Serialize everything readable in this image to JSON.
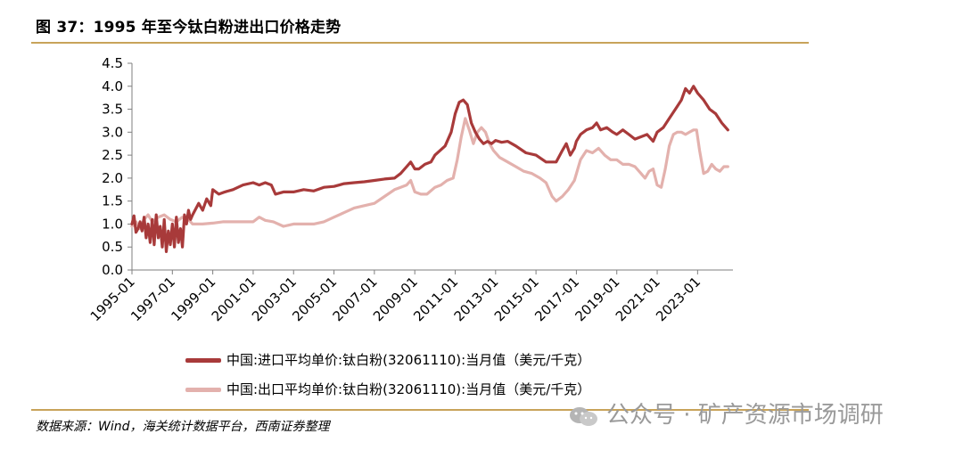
{
  "title": "图 37：1995 年至今钛白粉进出口价格走势",
  "source": "数据来源：Wind，海关统计数据平台，西南证券整理",
  "watermark": "公众号 · 矿产资源市场调研",
  "colors": {
    "import": "#a83a3a",
    "export": "#e3b1ad",
    "axis": "#7f7f7f",
    "accent_rule": "#c8a35a"
  },
  "chart_data": {
    "type": "line",
    "title": "",
    "xlabel": "",
    "ylabel": "",
    "ylim": [
      0,
      4.5
    ],
    "yticks": [
      "0.0",
      "0.5",
      "1.0",
      "1.5",
      "2.0",
      "2.5",
      "3.0",
      "3.5",
      "4.0",
      "4.5"
    ],
    "xlim": [
      1995.0,
      2024.75
    ],
    "xticks": [
      "1995-01",
      "1997-01",
      "1999-01",
      "2001-01",
      "2003-01",
      "2005-01",
      "2007-01",
      "2009-01",
      "2011-01",
      "2013-01",
      "2015-01",
      "2017-01",
      "2019-01",
      "2021-01",
      "2023-01"
    ],
    "series": [
      {
        "name": "中国:进口平均单价:钛白粉(32061110):当月值（美元/千克）",
        "color": "#a83a3a",
        "x": [
          1995.0,
          1995.1,
          1995.2,
          1995.3,
          1995.4,
          1995.5,
          1995.6,
          1995.7,
          1995.8,
          1995.9,
          1996.0,
          1996.1,
          1996.2,
          1996.3,
          1996.4,
          1996.5,
          1996.6,
          1996.7,
          1996.8,
          1996.9,
          1997.0,
          1997.1,
          1997.2,
          1997.3,
          1997.4,
          1997.5,
          1997.6,
          1997.7,
          1997.8,
          1997.9,
          1998.0,
          1998.3,
          1998.5,
          1998.7,
          1998.9,
          1999.0,
          1999.3,
          1999.6,
          2000.0,
          2000.5,
          2001.0,
          2001.3,
          2001.6,
          2001.9,
          2002.1,
          2002.5,
          2003.0,
          2003.5,
          2004.0,
          2004.5,
          2005.0,
          2005.5,
          2006.0,
          2006.5,
          2007.0,
          2007.5,
          2008.0,
          2008.3,
          2008.6,
          2008.8,
          2009.0,
          2009.2,
          2009.5,
          2009.8,
          2010.0,
          2010.5,
          2010.8,
          2011.0,
          2011.2,
          2011.4,
          2011.6,
          2011.8,
          2012.0,
          2012.2,
          2012.4,
          2012.6,
          2012.8,
          2013.0,
          2013.3,
          2013.6,
          2014.0,
          2014.5,
          2015.0,
          2015.5,
          2016.0,
          2016.3,
          2016.5,
          2016.7,
          2016.9,
          2017.0,
          2017.2,
          2017.5,
          2017.8,
          2018.0,
          2018.2,
          2018.5,
          2018.8,
          2019.0,
          2019.3,
          2019.6,
          2019.9,
          2020.2,
          2020.5,
          2020.8,
          2021.0,
          2021.3,
          2021.6,
          2021.9,
          2022.2,
          2022.4,
          2022.6,
          2022.8,
          2023.0,
          2023.3,
          2023.6,
          2023.9,
          2024.2,
          2024.5
        ],
        "values": [
          1.0,
          1.18,
          0.82,
          0.9,
          1.05,
          0.85,
          1.15,
          0.7,
          1.0,
          0.6,
          1.1,
          0.55,
          1.2,
          0.7,
          0.95,
          0.5,
          1.1,
          0.4,
          0.85,
          0.55,
          1.0,
          0.5,
          1.15,
          0.6,
          0.9,
          0.5,
          1.2,
          1.0,
          1.3,
          1.1,
          1.2,
          1.45,
          1.3,
          1.55,
          1.4,
          1.75,
          1.65,
          1.7,
          1.75,
          1.85,
          1.9,
          1.85,
          1.9,
          1.85,
          1.65,
          1.7,
          1.7,
          1.75,
          1.72,
          1.8,
          1.82,
          1.88,
          1.9,
          1.92,
          1.95,
          1.98,
          2.0,
          2.1,
          2.25,
          2.35,
          2.2,
          2.2,
          2.3,
          2.35,
          2.5,
          2.7,
          3.0,
          3.4,
          3.65,
          3.7,
          3.6,
          3.2,
          3.0,
          2.85,
          2.75,
          2.8,
          2.75,
          2.82,
          2.78,
          2.8,
          2.7,
          2.55,
          2.5,
          2.35,
          2.35,
          2.6,
          2.75,
          2.5,
          2.65,
          2.8,
          2.95,
          3.05,
          3.1,
          3.2,
          3.05,
          3.1,
          3.0,
          2.95,
          3.05,
          2.95,
          2.85,
          2.9,
          2.95,
          2.8,
          3.0,
          3.1,
          3.3,
          3.5,
          3.7,
          3.95,
          3.85,
          4.0,
          3.85,
          3.7,
          3.5,
          3.4,
          3.2,
          3.05
        ]
      },
      {
        "name": "中国:出口平均单价:钛白粉(32061110):当月值（美元/千克）",
        "color": "#e3b1ad",
        "x": [
          1995.0,
          1995.2,
          1995.4,
          1995.6,
          1995.8,
          1996.0,
          1996.3,
          1996.6,
          1996.9,
          1997.2,
          1997.5,
          1997.8,
          1998.0,
          1998.5,
          1999.0,
          1999.5,
          2000.0,
          2000.5,
          2001.0,
          2001.3,
          2001.6,
          2002.0,
          2002.5,
          2003.0,
          2003.5,
          2004.0,
          2004.5,
          2005.0,
          2005.5,
          2006.0,
          2006.5,
          2007.0,
          2007.5,
          2008.0,
          2008.3,
          2008.6,
          2008.8,
          2009.0,
          2009.3,
          2009.6,
          2010.0,
          2010.3,
          2010.6,
          2010.9,
          2011.1,
          2011.3,
          2011.5,
          2011.7,
          2011.9,
          2012.1,
          2012.3,
          2012.5,
          2012.7,
          2012.9,
          2013.2,
          2013.6,
          2014.0,
          2014.4,
          2014.8,
          2015.2,
          2015.5,
          2015.8,
          2016.0,
          2016.3,
          2016.6,
          2016.9,
          2017.2,
          2017.5,
          2017.8,
          2018.1,
          2018.4,
          2018.7,
          2019.0,
          2019.3,
          2019.6,
          2019.9,
          2020.2,
          2020.4,
          2020.6,
          2020.8,
          2021.0,
          2021.2,
          2021.4,
          2021.6,
          2021.8,
          2022.0,
          2022.2,
          2022.4,
          2022.6,
          2022.8,
          2022.95,
          2023.1,
          2023.3,
          2023.5,
          2023.7,
          2023.9,
          2024.1,
          2024.3,
          2024.5
        ],
        "values": [
          0.95,
          1.05,
          0.9,
          1.1,
          1.2,
          1.05,
          1.15,
          1.2,
          1.1,
          1.05,
          1.15,
          1.1,
          1.0,
          1.0,
          1.02,
          1.05,
          1.05,
          1.05,
          1.05,
          1.15,
          1.08,
          1.05,
          0.95,
          1.0,
          1.0,
          1.0,
          1.05,
          1.15,
          1.25,
          1.35,
          1.4,
          1.45,
          1.6,
          1.75,
          1.8,
          1.85,
          1.95,
          1.7,
          1.65,
          1.65,
          1.8,
          1.85,
          1.95,
          2.0,
          2.4,
          2.9,
          3.3,
          3.05,
          2.75,
          3.0,
          3.1,
          3.0,
          2.75,
          2.6,
          2.45,
          2.35,
          2.25,
          2.15,
          2.1,
          2.0,
          1.9,
          1.6,
          1.5,
          1.6,
          1.75,
          1.95,
          2.4,
          2.6,
          2.55,
          2.65,
          2.5,
          2.4,
          2.4,
          2.3,
          2.3,
          2.25,
          2.1,
          2.0,
          2.15,
          2.2,
          1.85,
          1.8,
          2.2,
          2.7,
          2.95,
          3.0,
          3.0,
          2.95,
          3.0,
          3.05,
          3.05,
          2.6,
          2.1,
          2.15,
          2.3,
          2.2,
          2.15,
          2.25,
          2.25
        ]
      }
    ]
  }
}
